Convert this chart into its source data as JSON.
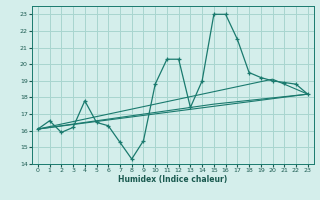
{
  "xlabel": "Humidex (Indice chaleur)",
  "background_color": "#d4eeeb",
  "grid_color": "#a8d5cf",
  "line_color": "#1a7a6e",
  "xlim": [
    -0.5,
    23.5
  ],
  "ylim": [
    14,
    23.5
  ],
  "yticks": [
    14,
    15,
    16,
    17,
    18,
    19,
    20,
    21,
    22,
    23
  ],
  "xticks": [
    0,
    1,
    2,
    3,
    4,
    5,
    6,
    7,
    8,
    9,
    10,
    11,
    12,
    13,
    14,
    15,
    16,
    17,
    18,
    19,
    20,
    21,
    22,
    23
  ],
  "series1_x": [
    0,
    1,
    2,
    3,
    4,
    5,
    6,
    7,
    8,
    9,
    10,
    11,
    12,
    13,
    14,
    15,
    16,
    17,
    18,
    19,
    20,
    21,
    22,
    23
  ],
  "series1_y": [
    16.1,
    16.6,
    15.9,
    16.2,
    17.8,
    16.5,
    16.3,
    15.3,
    14.3,
    15.4,
    18.8,
    20.3,
    20.3,
    17.4,
    19.0,
    23.0,
    23.0,
    21.5,
    19.5,
    19.2,
    19.0,
    18.9,
    18.8,
    18.2
  ],
  "series2_x": [
    0,
    23
  ],
  "series2_y": [
    16.1,
    18.2
  ],
  "series3_x": [
    0,
    20,
    23
  ],
  "series3_y": [
    16.1,
    19.1,
    18.2
  ],
  "series4_x": [
    0,
    15,
    23
  ],
  "series4_y": [
    16.1,
    17.6,
    18.2
  ]
}
